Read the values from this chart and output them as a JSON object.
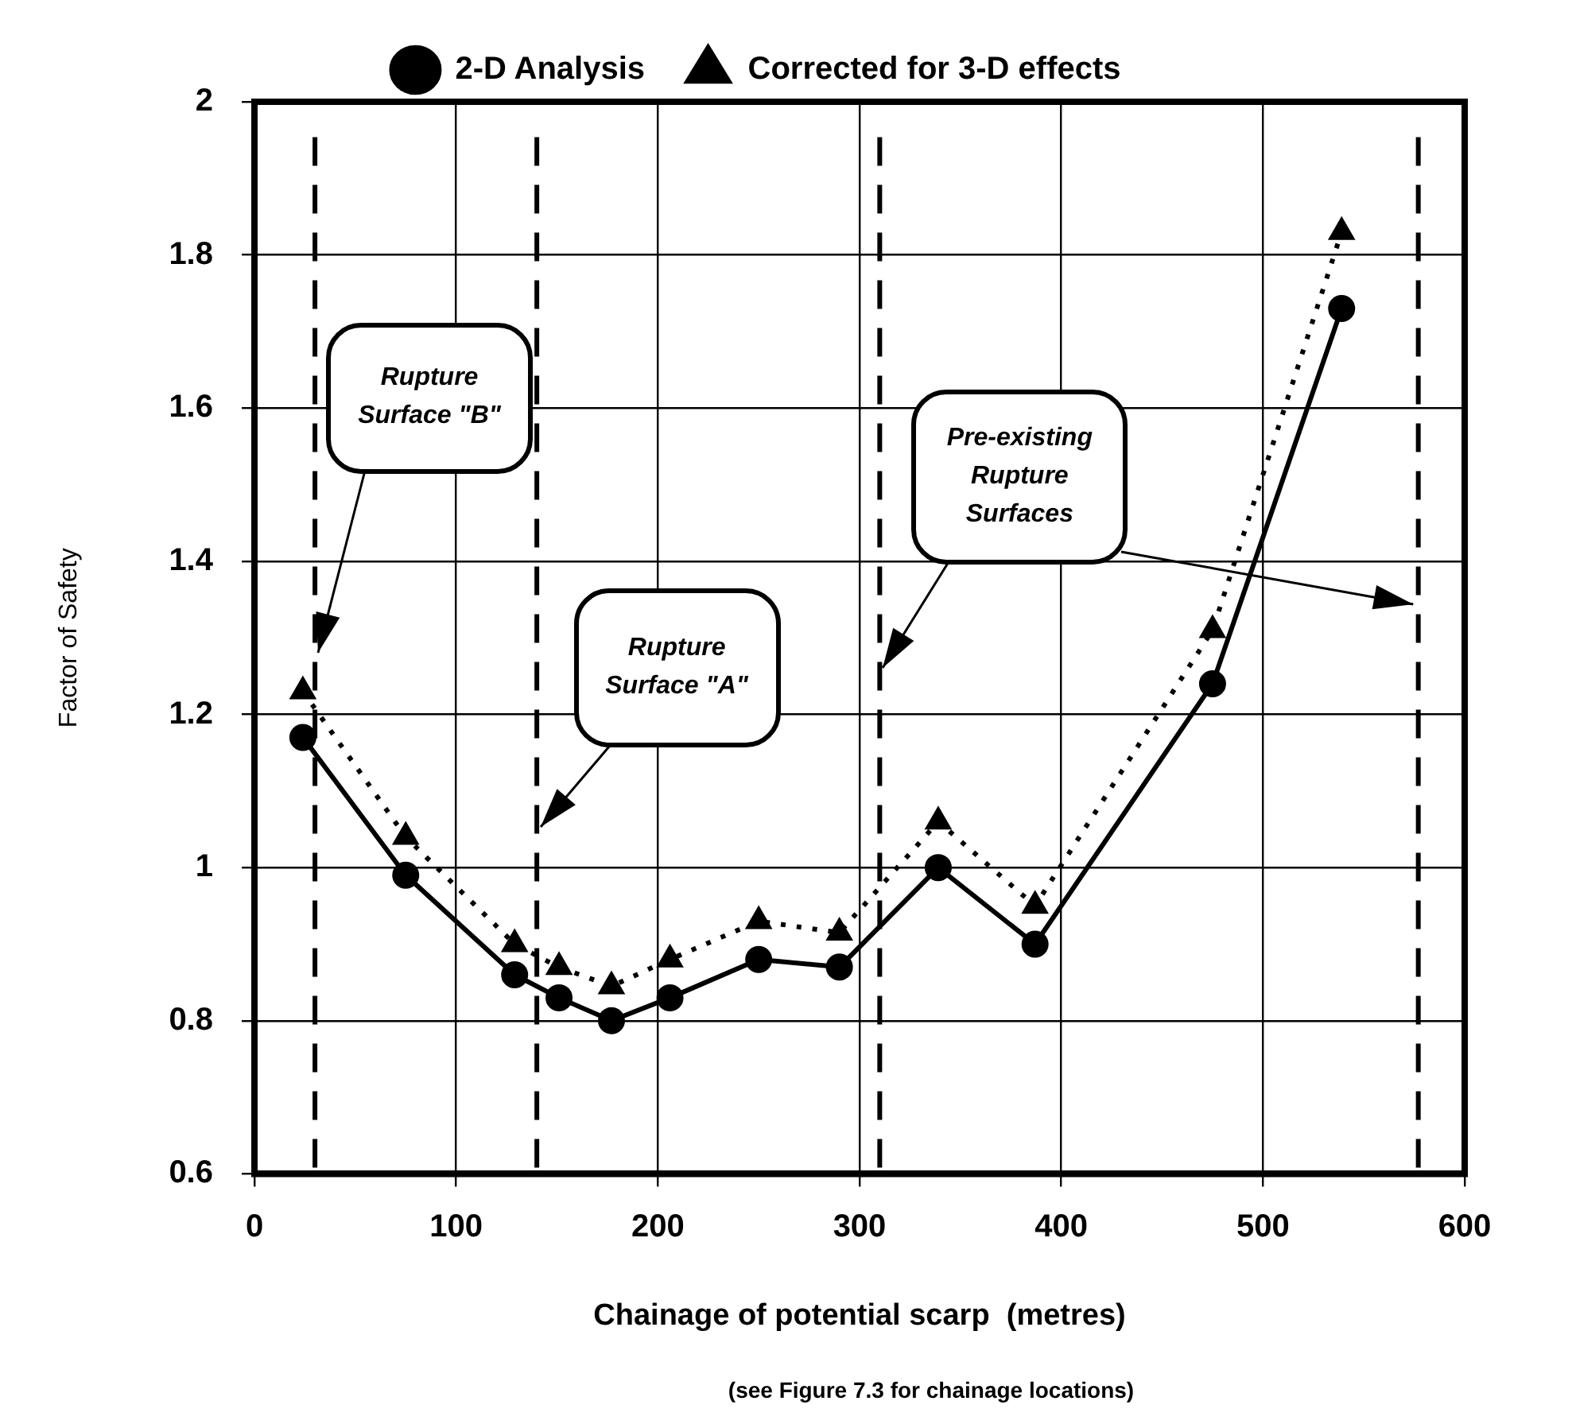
{
  "chart_data": {
    "type": "line",
    "xlabel": "Chainage of potential scarp  (metres)",
    "ylabel": "Factor of Safety",
    "xlim": [
      0,
      600
    ],
    "xticks": [
      0,
      100,
      200,
      300,
      400,
      500,
      600
    ],
    "ylim": [
      0.6,
      2
    ],
    "yticks": [
      0.6,
      0.8,
      1,
      1.2,
      1.4,
      1.6,
      1.8,
      2
    ],
    "grid": true,
    "legend": "top",
    "series": [
      {
        "name": "2-D Analysis",
        "color": "#000000",
        "marker": "circle",
        "line_style": "solid",
        "x": [
          24,
          75,
          129,
          151,
          177,
          206,
          250,
          290,
          339,
          387,
          475,
          539
        ],
        "values": [
          1.17,
          0.99,
          0.86,
          0.83,
          0.8,
          0.83,
          0.88,
          0.87,
          1.0,
          0.9,
          1.24,
          1.73
        ]
      },
      {
        "name": "Corrected for 3-D effects",
        "color": "#000000",
        "marker": "triangle",
        "line_style": "dotted",
        "x": [
          24,
          75,
          129,
          151,
          177,
          206,
          250,
          290,
          339,
          387,
          475,
          539
        ],
        "values": [
          1.23,
          1.04,
          0.9,
          0.87,
          0.845,
          0.88,
          0.93,
          0.915,
          1.06,
          0.95,
          1.31,
          1.83
        ]
      }
    ],
    "ref_lines": [
      {
        "axis": "x",
        "value": 30,
        "line_style": "dashed",
        "color": "#000000",
        "label": "Rupture Surface \"B\""
      },
      {
        "axis": "x",
        "value": 140,
        "line_style": "dashed",
        "color": "#000000",
        "label": "Rupture Surface \"A\""
      },
      {
        "axis": "x",
        "value": 310,
        "line_style": "dashed",
        "color": "#000000",
        "label": "Pre-existing Rupture Surfaces"
      },
      {
        "axis": "x",
        "value": 577,
        "line_style": "dashed",
        "color": "#000000"
      }
    ],
    "annotations": [
      "(see Figure 7.3 for chainage locations)"
    ]
  }
}
